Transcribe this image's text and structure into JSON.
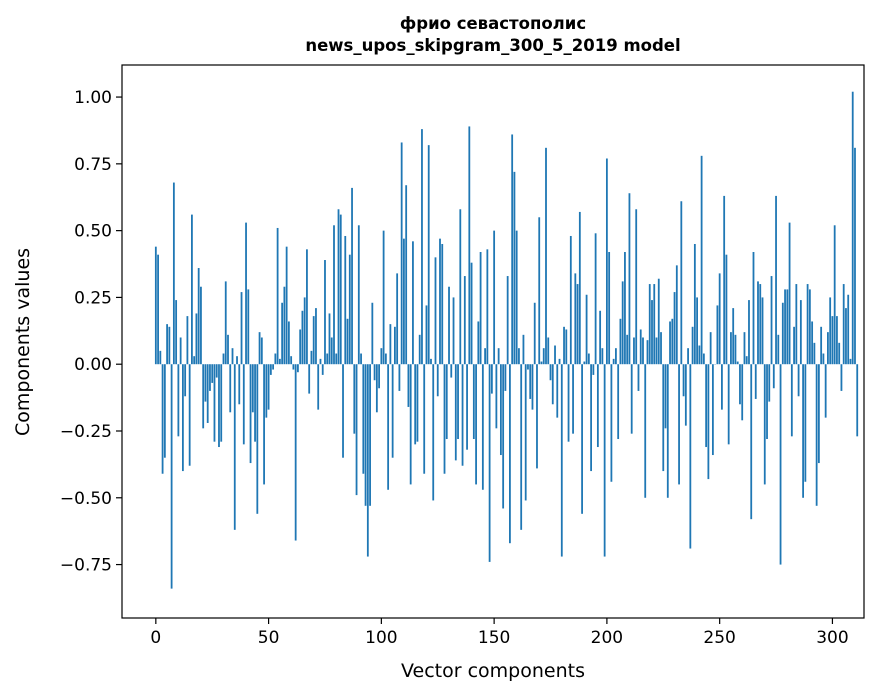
{
  "chart_data": {
    "type": "bar",
    "title_lines": [
      "фрио севастополис",
      "news_upos_skipgram_300_5_2019 model"
    ],
    "xlabel": "Vector components",
    "ylabel": "Components values",
    "xlim": [
      -15,
      314
    ],
    "ylim": [
      -0.95,
      1.12
    ],
    "xticks": [
      0,
      50,
      100,
      150,
      200,
      250,
      300
    ],
    "yticks": [
      -0.75,
      -0.5,
      -0.25,
      0.0,
      0.25,
      0.5,
      0.75,
      1.0
    ],
    "xtick_labels": [
      "0",
      "50",
      "100",
      "150",
      "200",
      "250",
      "300"
    ],
    "ytick_labels": [
      "−0.75",
      "−0.50",
      "−0.25",
      "0.00",
      "0.25",
      "0.50",
      "0.75",
      "1.00"
    ],
    "bar_color": "#1f77b4",
    "grid": false,
    "values": [
      0.44,
      0.41,
      0.05,
      -0.41,
      -0.35,
      0.15,
      0.14,
      -0.84,
      0.68,
      0.24,
      -0.27,
      0.1,
      -0.4,
      -0.12,
      0.18,
      -0.38,
      0.56,
      0.03,
      0.19,
      0.36,
      0.29,
      -0.24,
      -0.14,
      -0.22,
      -0.1,
      -0.07,
      -0.29,
      -0.05,
      -0.31,
      -0.29,
      0.04,
      0.31,
      0.11,
      -0.18,
      0.06,
      -0.62,
      0.03,
      -0.15,
      0.27,
      -0.3,
      0.53,
      0.28,
      -0.37,
      -0.18,
      -0.29,
      -0.56,
      0.12,
      0.1,
      -0.45,
      -0.2,
      -0.17,
      -0.04,
      -0.02,
      0.04,
      0.51,
      0.02,
      0.23,
      0.29,
      0.44,
      0.16,
      0.03,
      -0.02,
      -0.66,
      -0.03,
      0.13,
      0.2,
      0.25,
      0.43,
      -0.11,
      0.05,
      0.18,
      0.21,
      -0.17,
      0.02,
      -0.04,
      0.39,
      0.04,
      0.19,
      0.1,
      0.52,
      0.04,
      0.58,
      0.56,
      -0.35,
      0.48,
      0.17,
      0.41,
      0.66,
      -0.26,
      -0.49,
      0.52,
      0.04,
      -0.41,
      -0.53,
      -0.72,
      -0.53,
      0.23,
      -0.06,
      -0.18,
      -0.09,
      0.06,
      0.5,
      0.04,
      -0.47,
      0.15,
      -0.35,
      0.14,
      0.34,
      -0.1,
      0.83,
      0.47,
      0.67,
      -0.16,
      -0.45,
      0.46,
      -0.3,
      -0.29,
      0.11,
      0.88,
      -0.41,
      0.22,
      0.82,
      0.02,
      -0.51,
      0.4,
      -0.12,
      0.47,
      0.45,
      -0.41,
      -0.28,
      0.29,
      -0.05,
      0.25,
      -0.36,
      -0.28,
      0.58,
      -0.38,
      0.33,
      -0.32,
      0.89,
      0.38,
      -0.28,
      -0.45,
      0.16,
      0.42,
      -0.47,
      0.06,
      0.43,
      -0.74,
      -0.11,
      0.5,
      -0.24,
      0.06,
      -0.34,
      -0.54,
      -0.1,
      0.33,
      -0.67,
      0.86,
      0.72,
      0.5,
      0.06,
      -0.62,
      0.11,
      -0.51,
      -0.02,
      -0.13,
      -0.17,
      0.23,
      -0.39,
      0.55,
      0.01,
      0.06,
      0.81,
      0.1,
      -0.06,
      -0.15,
      0.07,
      -0.2,
      0.02,
      -0.72,
      0.14,
      0.13,
      -0.29,
      0.48,
      -0.26,
      0.34,
      0.3,
      0.57,
      -0.56,
      0.01,
      0.26,
      0.04,
      -0.4,
      -0.04,
      0.49,
      -0.31,
      0.2,
      0.06,
      -0.72,
      0.77,
      0.42,
      -0.44,
      0.02,
      0.06,
      -0.28,
      0.17,
      0.31,
      0.42,
      0.11,
      0.64,
      -0.26,
      0.1,
      0.58,
      -0.1,
      0.13,
      0.1,
      -0.5,
      0.09,
      0.3,
      0.24,
      0.3,
      0.1,
      0.32,
      0.12,
      -0.4,
      -0.24,
      -0.5,
      0.16,
      0.17,
      0.27,
      0.37,
      -0.45,
      0.61,
      -0.12,
      -0.23,
      0.06,
      -0.69,
      0.14,
      0.45,
      0.25,
      0.07,
      0.78,
      0.04,
      -0.31,
      -0.43,
      0.12,
      -0.34,
      0.0,
      0.22,
      0.34,
      -0.17,
      0.63,
      0.41,
      -0.3,
      0.12,
      0.21,
      0.11,
      0.01,
      -0.15,
      -0.21,
      0.12,
      0.03,
      0.24,
      -0.58,
      0.42,
      -0.13,
      0.31,
      0.3,
      0.25,
      -0.45,
      -0.28,
      -0.14,
      0.33,
      -0.09,
      0.63,
      0.11,
      -0.75,
      0.23,
      0.28,
      0.28,
      0.53,
      -0.27,
      0.14,
      0.3,
      -0.12,
      0.24,
      -0.5,
      -0.44,
      0.3,
      0.28,
      0.16,
      0.08,
      -0.53,
      -0.37,
      0.14,
      0.04,
      -0.2,
      0.12,
      0.25,
      0.18,
      0.52,
      0.18,
      0.08,
      -0.1,
      0.3,
      0.21,
      0.26,
      0.02,
      1.02,
      0.81,
      -0.27
    ]
  }
}
